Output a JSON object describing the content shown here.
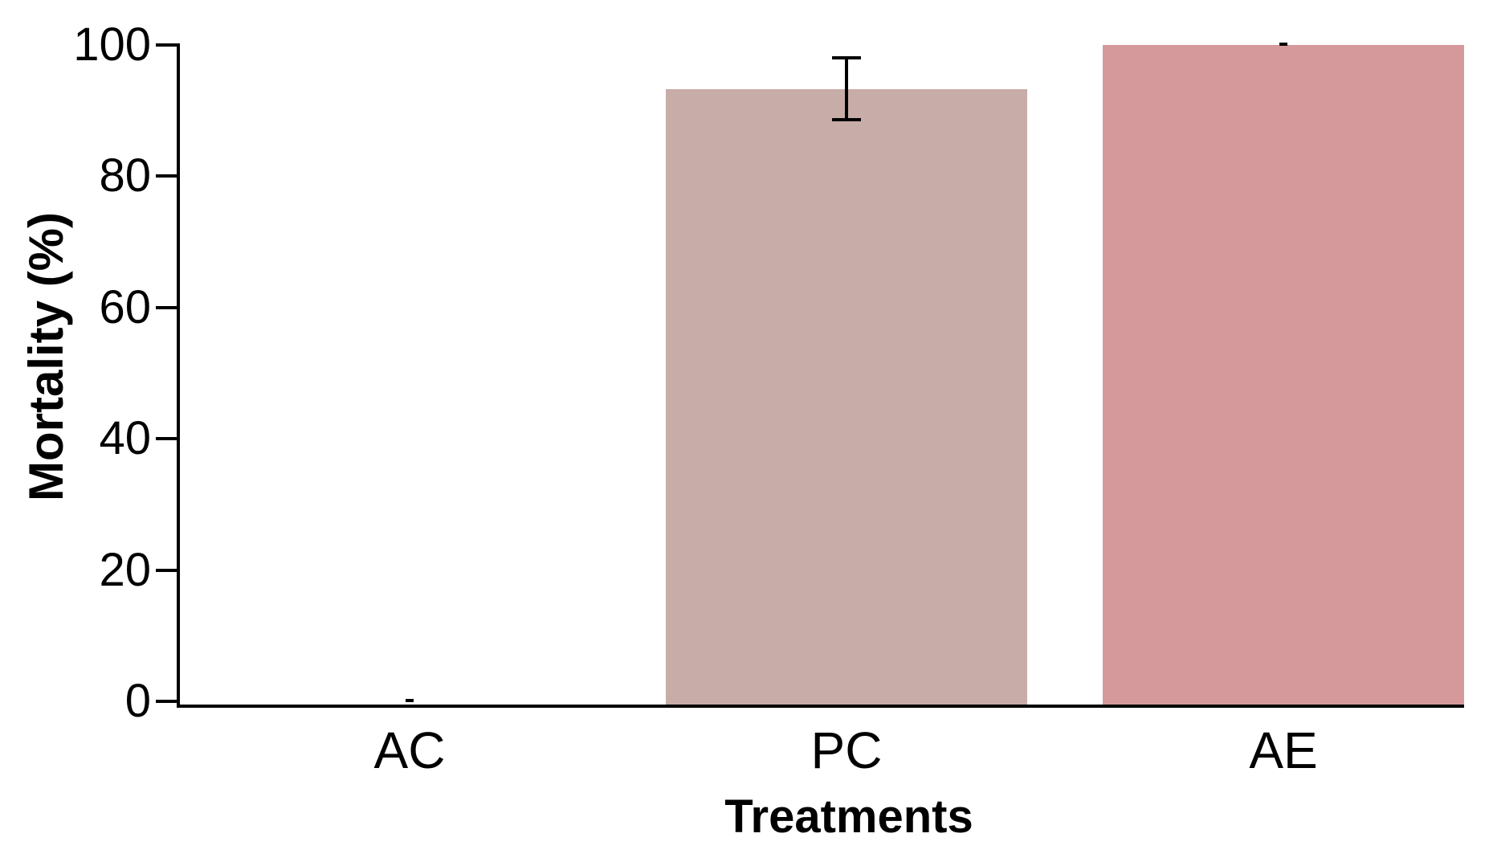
{
  "chart_data": {
    "type": "bar",
    "title": "",
    "xlabel": "Treatments",
    "ylabel": "Mortality (%)",
    "categories": [
      "AC",
      "PC",
      "AE"
    ],
    "values": [
      0,
      93.3,
      100
    ],
    "errors": [
      0,
      4.7,
      0
    ],
    "error_style": "symmetric, black caps, zero errors drawn as tiny dash",
    "ylim": [
      0,
      100
    ],
    "yticks": [
      0,
      20,
      40,
      60,
      80,
      100
    ],
    "ytick_labels": [
      "0",
      "20",
      "40",
      "60",
      "80",
      "100"
    ],
    "bar_colors": [
      "none",
      "#c7aca8",
      "#d6999b"
    ],
    "axis_color": "#000000",
    "background_color": "#ffffff",
    "grid": false,
    "legend": null
  }
}
